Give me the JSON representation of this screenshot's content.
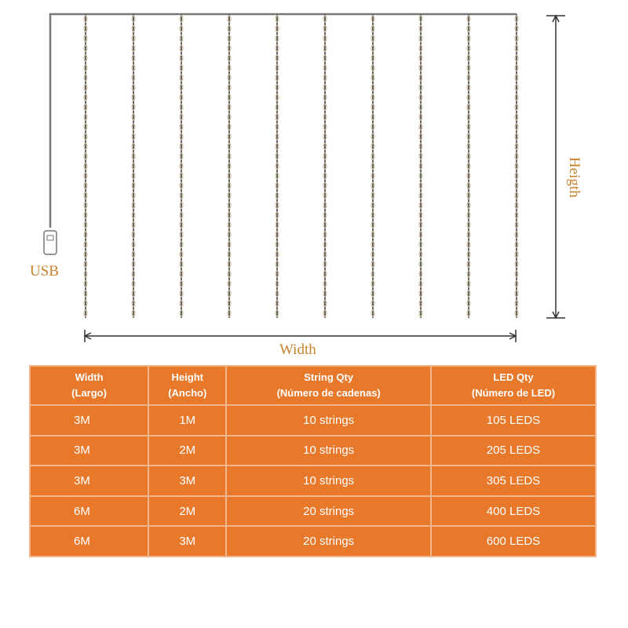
{
  "diagram": {
    "usb_label": "USB",
    "width_label": "Width",
    "height_label": "Heigth",
    "string_count": 10,
    "colors": {
      "accent": "#c8822e",
      "table_bg": "#e8782a",
      "wire": "#777777"
    }
  },
  "table": {
    "headers": [
      {
        "line1": "Width",
        "line2": "(Largo)"
      },
      {
        "line1": "Height",
        "line2": "(Ancho)"
      },
      {
        "line1": "String Qty",
        "line2": "(Número de cadenas)"
      },
      {
        "line1": "LED Qty",
        "line2": "(Número de LED)"
      }
    ],
    "rows": [
      [
        "3M",
        "1M",
        "10  strings",
        "105 LEDS"
      ],
      [
        "3M",
        "2M",
        "10  strings",
        "205 LEDS"
      ],
      [
        "3M",
        "3M",
        "10  strings",
        "305 LEDS"
      ],
      [
        "6M",
        "2M",
        "20  strings",
        "400 LEDS"
      ],
      [
        "6M",
        "3M",
        "20  strings",
        "600 LEDS"
      ]
    ]
  }
}
